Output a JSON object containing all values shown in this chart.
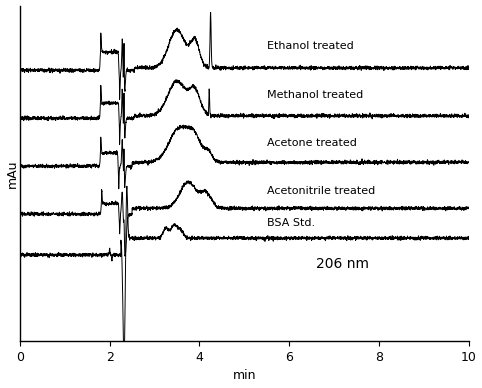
{
  "xlim": [
    0,
    10
  ],
  "ylim": [
    -1.8,
    5.2
  ],
  "xlabel": "min",
  "ylabel": "mAu",
  "annotation": "206 nm",
  "traces": [
    {
      "label": "BSA Std.",
      "baseline": 0.0,
      "color": "#000000"
    },
    {
      "label": "Acetonitrile treated",
      "baseline": 0.85,
      "color": "#000000"
    },
    {
      "label": "Acetone treated",
      "baseline": 1.85,
      "color": "#000000"
    },
    {
      "label": "Methanol treated",
      "baseline": 2.85,
      "color": "#000000"
    },
    {
      "label": "Ethanol treated",
      "baseline": 3.85,
      "color": "#000000"
    }
  ],
  "xticks": [
    0,
    2,
    4,
    6,
    8,
    10
  ],
  "background_color": "#ffffff",
  "linewidth": 0.7,
  "noise_amp": 0.018,
  "label_fontsize": 8,
  "axis_fontsize": 9
}
